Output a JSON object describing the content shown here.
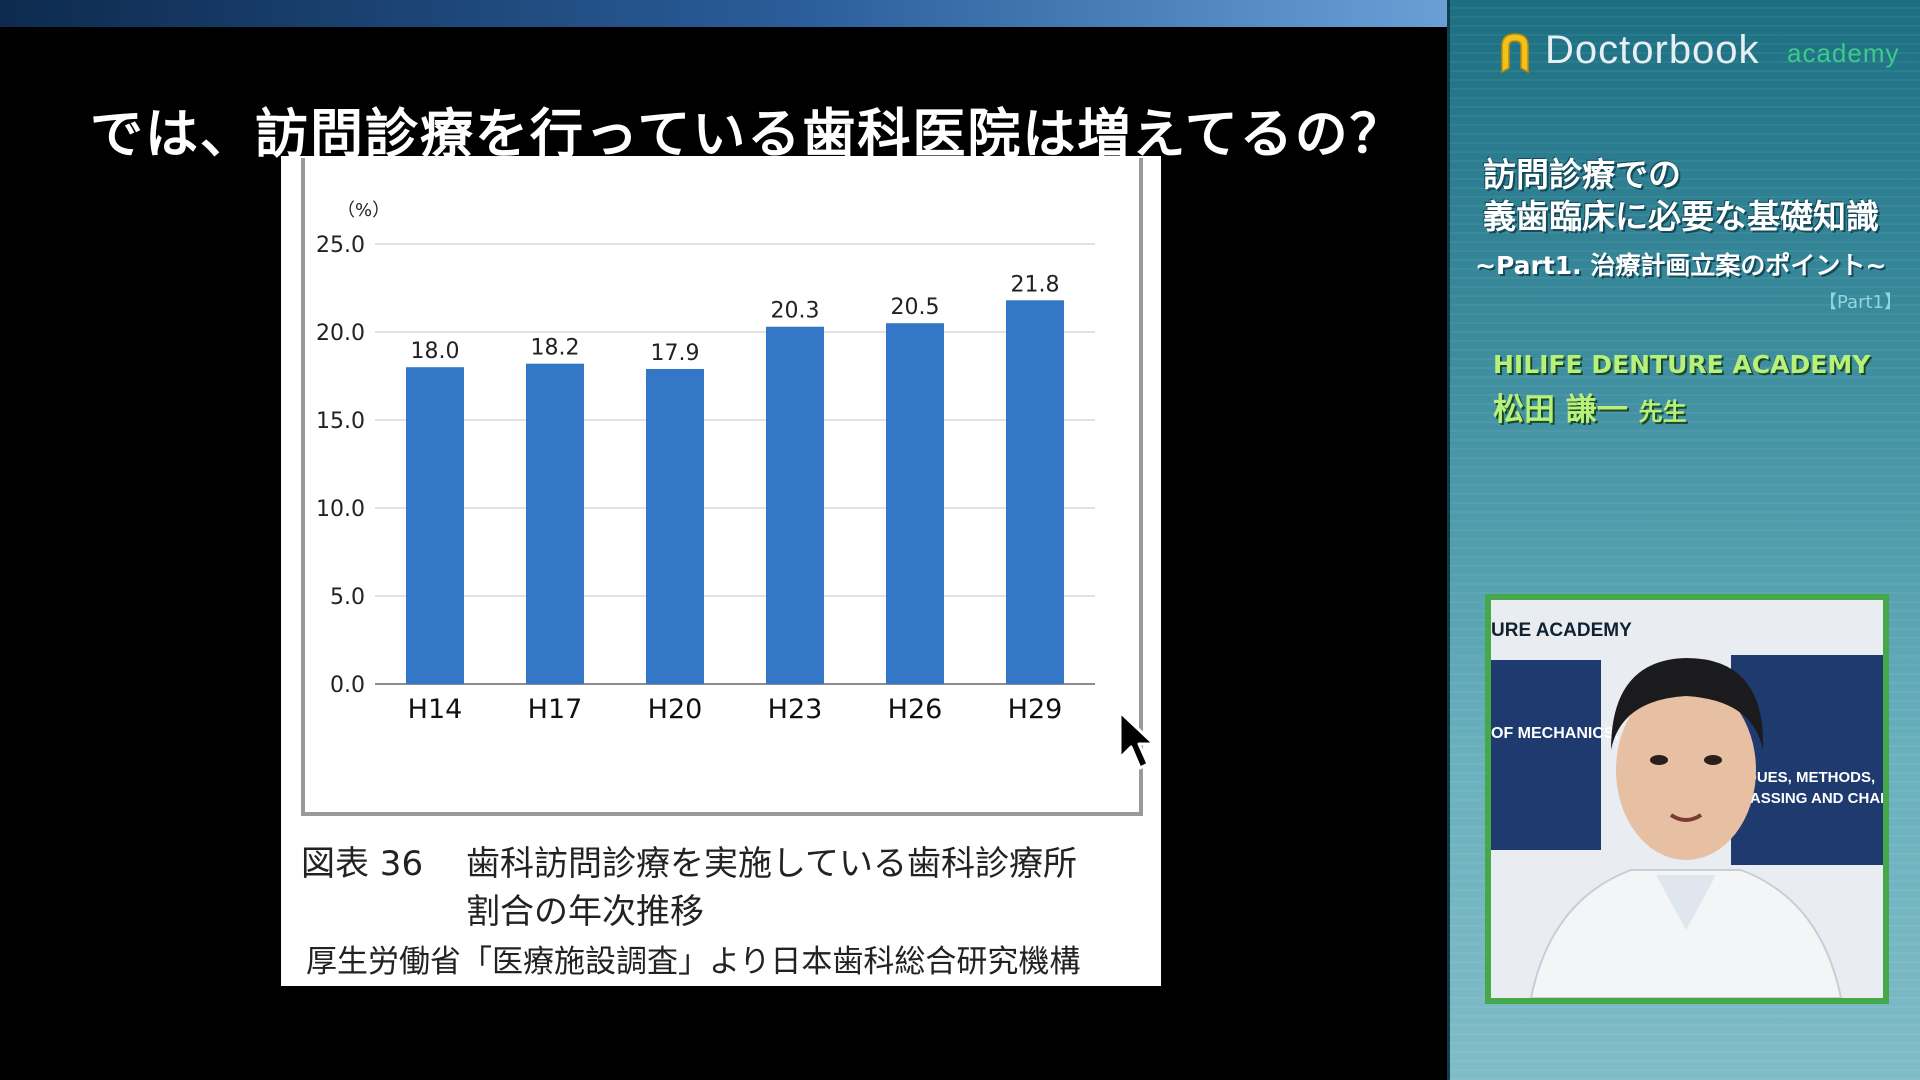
{
  "slide": {
    "title": "では、訪問診療を行っている歯科医院は増えてるの？",
    "caption_number": "図表 36",
    "caption_line1": "歯科訪問診療を実施している歯科診療所",
    "caption_line2": "割合の年次推移",
    "caption_source": "厚生労働省「医療施設調査」より日本歯科総合研究機構"
  },
  "chart_data": {
    "type": "bar",
    "categories": [
      "H14",
      "H17",
      "H20",
      "H23",
      "H26",
      "H29"
    ],
    "values": [
      18.0,
      18.2,
      17.9,
      20.3,
      20.5,
      21.8
    ],
    "value_labels": [
      "18.0",
      "18.2",
      "17.9",
      "20.3",
      "20.5",
      "21.8"
    ],
    "y_unit": "（%）",
    "y_ticks": [
      0.0,
      5.0,
      10.0,
      15.0,
      20.0,
      25.0
    ],
    "y_tick_labels": [
      "0.0",
      "5.0",
      "10.0",
      "15.0",
      "20.0",
      "25.0"
    ],
    "ylim": [
      0,
      25
    ],
    "grid": true,
    "bar_color": "#3477c6"
  },
  "sidebar": {
    "logo_main": "Doctorbook",
    "logo_sub": "academy",
    "lecture_title_1": "訪問診療での",
    "lecture_title_2": "義歯臨床に必要な基礎知識",
    "lecture_subtitle": "~Part1. 治療計画立案のポイント~",
    "part_tag": "【Part1】",
    "academy_name": "HILIFE DENTURE ACADEMY",
    "lecturer_name": "松田 謙一",
    "lecturer_honorific": "先生",
    "accent_color": "#b8f07a",
    "logo_accent_color": "#3cc98a"
  },
  "video": {
    "backdrop_lines": [
      "URE ACADEMY",
      "OF MECHANICS,",
      "IQUES, METHODS,",
      "PASSING AND CHAN"
    ]
  }
}
